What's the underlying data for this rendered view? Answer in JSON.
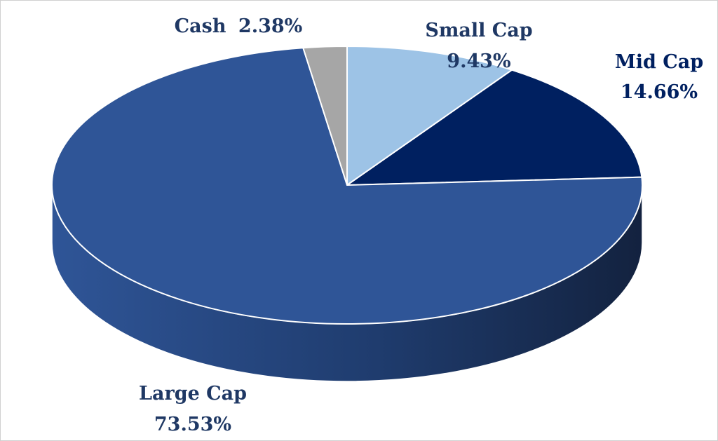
{
  "chart_data": {
    "type": "pie",
    "title": "",
    "start_angle_deg": 0,
    "direction": "clockwise",
    "slices": [
      {
        "label": "Small Cap",
        "value": 9.43,
        "value_label": "9.43%",
        "color": "#9dc3e6",
        "label_color": "#1f3864"
      },
      {
        "label": "Mid Cap",
        "value": 14.66,
        "value_label": "14.66%",
        "color": "#002060",
        "label_color": "#002060"
      },
      {
        "label": "Large Cap",
        "value": 73.53,
        "value_label": "73.53%",
        "color": "#2f5597",
        "label_color": "#1f3864"
      },
      {
        "label": "Cash",
        "value": 2.38,
        "value_label": "2.38%",
        "color": "#a6a6a6",
        "label_color": "#1f3864"
      }
    ]
  }
}
